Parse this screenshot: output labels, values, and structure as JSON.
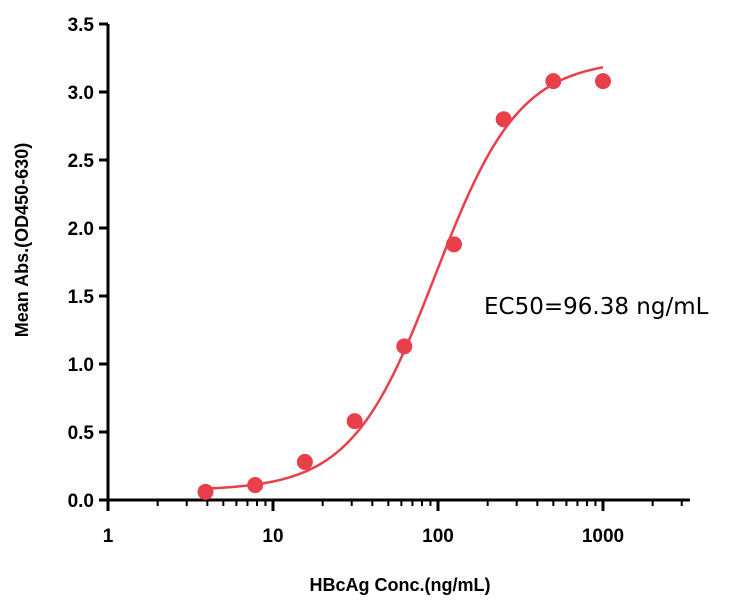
{
  "chart_data": {
    "type": "scatter",
    "title": "",
    "xlabel": "HBcAg Conc.(ng/mL)",
    "ylabel": "Mean Abs.(OD450-630)",
    "xscale": "log",
    "xlim": [
      1,
      3000
    ],
    "ylim": [
      0,
      3.5
    ],
    "x_ticks": [
      1,
      10,
      100,
      1000
    ],
    "x_tick_labels": [
      "1",
      "10",
      "100",
      "1000"
    ],
    "y_ticks": [
      0,
      0.5,
      1.0,
      1.5,
      2.0,
      2.5,
      3.0,
      3.5
    ],
    "y_tick_labels": [
      "0.0",
      "0.5",
      "1.0",
      "1.5",
      "2.0",
      "2.5",
      "3.0",
      "3.5"
    ],
    "grid": false,
    "color": "#e8404a",
    "series": [
      {
        "x": [
          3.9,
          7.8,
          15.6,
          31.25,
          62.5,
          125,
          250,
          500,
          1000
        ],
        "y": [
          0.06,
          0.11,
          0.28,
          0.58,
          1.13,
          1.88,
          2.8,
          3.08,
          3.08
        ]
      }
    ],
    "fit_curve": {
      "model": "4PL",
      "bottom": 0.07,
      "top": 3.24,
      "ec50": 96.38,
      "hill": 1.7,
      "x_range": [
        3.9,
        1000
      ]
    },
    "annotation": "EC50=96.38 ng/mL"
  }
}
